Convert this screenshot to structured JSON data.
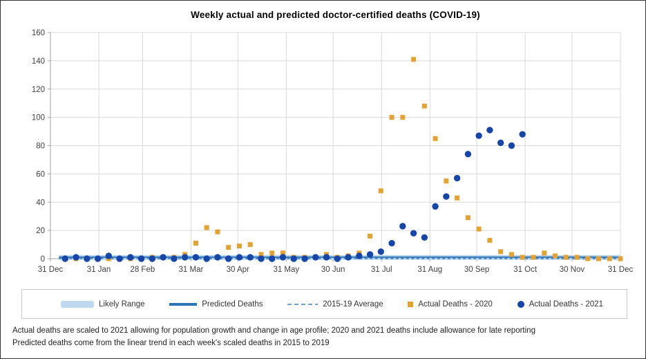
{
  "title": "Weekly actual and predicted doctor-certified deaths (COVID-19)",
  "footnotes": [
    "Actual deaths are scaled to 2021 allowing for population growth and change in age profile; 2020 and 2021 deaths include allowance for late reporting",
    "Predicted deaths come from the linear trend in each week's scaled deaths in 2015 to 2019"
  ],
  "colors": {
    "gridline": "#D9D9D9",
    "axis": "#A6A6A6",
    "tick_label": "#404040",
    "band": "#BDD7EE",
    "predicted": "#2E75B6",
    "average_dashed": "#4384C8",
    "actual_2020": "#E4A233",
    "actual_2021": "#1845A8"
  },
  "chart_data": {
    "type": "scatter",
    "title": "Weekly actual and predicted doctor-certified deaths (COVID-19)",
    "xlabel": "",
    "ylabel": "",
    "grid": true,
    "legend_position": "bottom",
    "x_tick_labels": [
      "31 Dec",
      "31 Jan",
      "28 Feb",
      "31 Mar",
      "30 Apr",
      "31 May",
      "30 Jun",
      "31 Jul",
      "31 Aug",
      "30 Sep",
      "31 Oct",
      "30 Nov",
      "31 Dec"
    ],
    "x_tick_days": [
      0,
      31,
      59,
      90,
      120,
      151,
      181,
      212,
      243,
      273,
      304,
      334,
      365
    ],
    "y_axis": {
      "min": 0,
      "max": 160,
      "step": 20
    },
    "series": [
      {
        "name": "Likely Range",
        "type": "band",
        "color": "#BDD7EE",
        "low": 0,
        "high": 2.6
      },
      {
        "name": "Predicted Deaths",
        "type": "line",
        "color": "#2E75B6",
        "value": 1.1
      },
      {
        "name": "2015-19 Average",
        "type": "dashed_line",
        "color": "#4384C8",
        "value": 0.9
      },
      {
        "name": "Actual Deaths - 2020",
        "type": "scatter_square",
        "color": "#E4A233",
        "weekly_values": [
          0,
          0,
          0,
          0,
          0,
          0,
          0,
          0,
          1,
          1,
          1,
          3,
          11,
          22,
          19,
          8,
          9,
          10,
          3,
          4,
          4,
          1,
          1,
          1,
          3,
          1,
          2,
          4,
          16,
          48,
          100,
          100,
          141,
          108,
          85,
          55,
          43,
          29,
          21,
          13,
          5,
          3,
          1,
          1,
          4,
          2,
          1,
          1,
          0,
          0,
          0,
          0
        ]
      },
      {
        "name": "Actual Deaths - 2021",
        "type": "scatter_circle",
        "color": "#1845A8",
        "weekly_values": [
          0,
          1,
          0,
          0,
          2,
          0,
          1,
          0,
          0,
          1,
          0,
          1,
          1,
          0,
          1,
          0,
          1,
          1,
          0,
          0,
          1,
          0,
          0,
          1,
          1,
          0,
          1,
          2,
          3,
          5,
          11,
          23,
          18,
          15,
          37,
          44,
          57,
          74,
          87,
          91,
          82,
          80,
          88
        ]
      }
    ]
  }
}
